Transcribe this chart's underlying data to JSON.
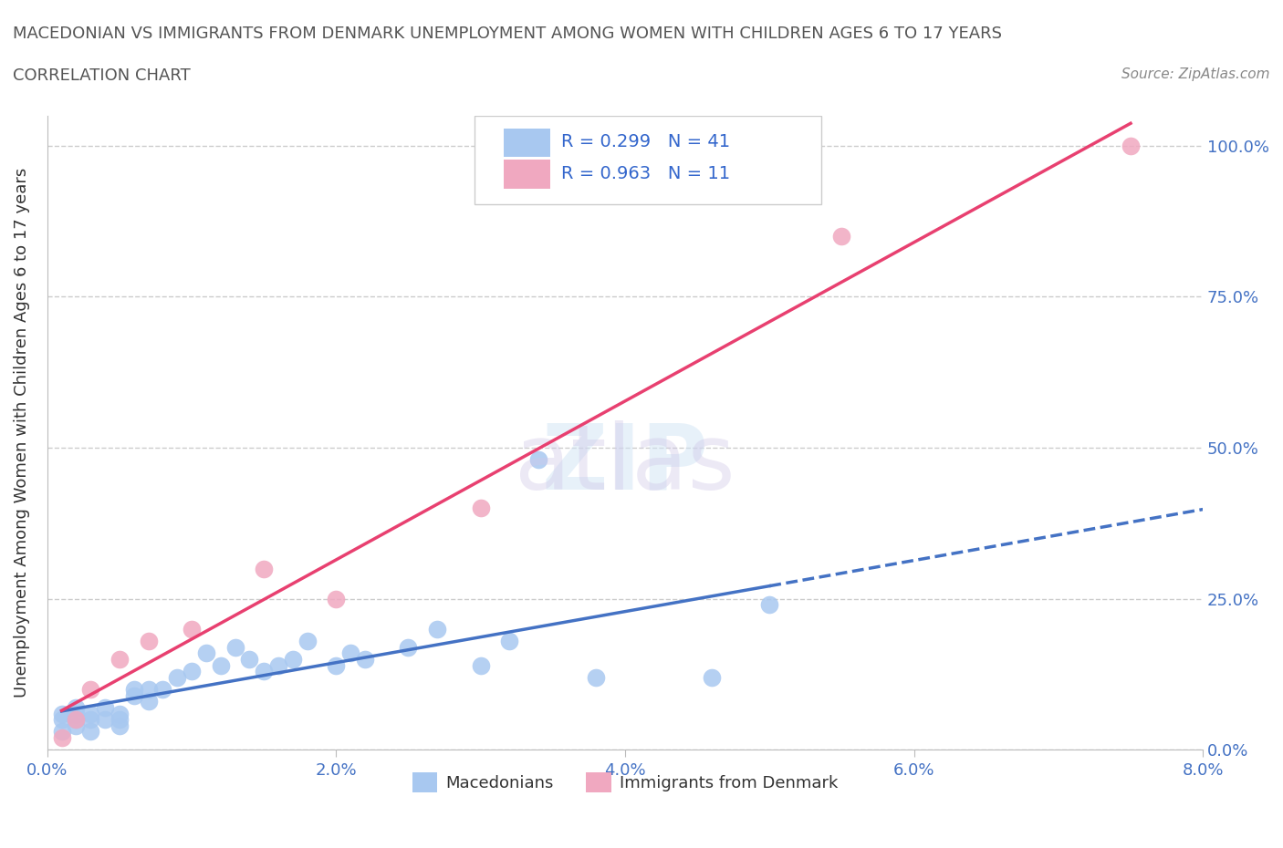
{
  "title_line1": "MACEDONIAN VS IMMIGRANTS FROM DENMARK UNEMPLOYMENT AMONG WOMEN WITH CHILDREN AGES 6 TO 17 YEARS",
  "title_line2": "CORRELATION CHART",
  "source": "Source: ZipAtlas.com",
  "xlabel": "",
  "ylabel": "Unemployment Among Women with Children Ages 6 to 17 years",
  "xlim": [
    0.0,
    0.08
  ],
  "ylim": [
    0.0,
    1.05
  ],
  "xticks": [
    0.0,
    0.02,
    0.04,
    0.06,
    0.08
  ],
  "xtick_labels": [
    "0.0%",
    "2.0%",
    "4.0%",
    "6.0%",
    "8.0%"
  ],
  "ytick_labels": [
    "0.0%",
    "25.0%",
    "50.0%",
    "75.0%",
    "100.0%"
  ],
  "yticks": [
    0.0,
    0.25,
    0.5,
    0.75,
    1.0
  ],
  "macedonian_color": "#a8c8f0",
  "denmark_color": "#f0a8c0",
  "macedonian_line_color": "#4472c4",
  "denmark_line_color": "#e84070",
  "right_tick_color": "#4472c4",
  "legend_box_color": "#e0ecff",
  "legend_box_color2": "#ffe0ec",
  "watermark": "ZIPatlas",
  "R_macedonian": 0.299,
  "N_macedonian": 41,
  "R_denmark": 0.963,
  "N_denmark": 11,
  "macedonian_x": [
    0.001,
    0.001,
    0.001,
    0.002,
    0.002,
    0.002,
    0.002,
    0.003,
    0.003,
    0.003,
    0.004,
    0.004,
    0.005,
    0.005,
    0.005,
    0.006,
    0.006,
    0.007,
    0.007,
    0.008,
    0.009,
    0.01,
    0.011,
    0.012,
    0.013,
    0.014,
    0.015,
    0.016,
    0.017,
    0.018,
    0.02,
    0.021,
    0.022,
    0.025,
    0.027,
    0.03,
    0.032,
    0.034,
    0.038,
    0.046,
    0.05
  ],
  "macedonian_y": [
    0.03,
    0.05,
    0.06,
    0.04,
    0.05,
    0.06,
    0.07,
    0.03,
    0.05,
    0.06,
    0.05,
    0.07,
    0.04,
    0.05,
    0.06,
    0.09,
    0.1,
    0.08,
    0.1,
    0.1,
    0.12,
    0.13,
    0.16,
    0.14,
    0.17,
    0.15,
    0.13,
    0.14,
    0.15,
    0.18,
    0.14,
    0.16,
    0.15,
    0.17,
    0.2,
    0.14,
    0.18,
    0.48,
    0.12,
    0.12,
    0.24
  ],
  "denmark_x": [
    0.001,
    0.002,
    0.003,
    0.005,
    0.007,
    0.01,
    0.015,
    0.02,
    0.03,
    0.055,
    0.075
  ],
  "denmark_y": [
    0.02,
    0.05,
    0.1,
    0.15,
    0.18,
    0.2,
    0.3,
    0.25,
    0.4,
    0.85,
    1.0
  ]
}
